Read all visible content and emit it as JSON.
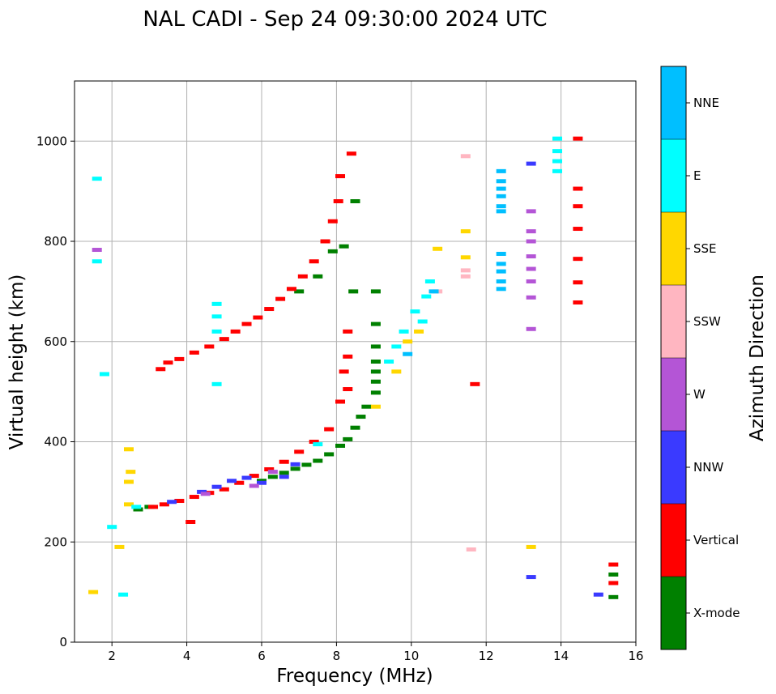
{
  "chart_data": {
    "type": "scatter",
    "title": "NAL CADI - Sep 24 09:30:00 2024 UTC",
    "xlabel": "Frequency (MHz)",
    "ylabel": "Virtual height (km)",
    "xlim": [
      1,
      16
    ],
    "ylim": [
      0,
      1120
    ],
    "xticks": [
      2,
      4,
      6,
      8,
      10,
      12,
      14,
      16
    ],
    "yticks": [
      0,
      200,
      400,
      600,
      800,
      1000
    ],
    "grid": true,
    "colorbar": {
      "label": "Azimuth Direction",
      "categories": [
        {
          "name": "X-mode",
          "color": "#008000"
        },
        {
          "name": "Vertical",
          "color": "#ff0000"
        },
        {
          "name": "NNW",
          "color": "#3a3aff"
        },
        {
          "name": "W",
          "color": "#b455d6"
        },
        {
          "name": "SSW",
          "color": "#ffb6c1"
        },
        {
          "name": "SSE",
          "color": "#ffd700"
        },
        {
          "name": "E",
          "color": "#00ffff"
        },
        {
          "name": "NNE",
          "color": "#00bfff"
        }
      ]
    },
    "series": [
      {
        "name": "X-mode",
        "points": [
          [
            6.0,
            322
          ],
          [
            6.3,
            330
          ],
          [
            6.6,
            338
          ],
          [
            6.9,
            346
          ],
          [
            7.2,
            354
          ],
          [
            7.5,
            362
          ],
          [
            7.8,
            375
          ],
          [
            8.1,
            392
          ],
          [
            8.3,
            405
          ],
          [
            8.5,
            428
          ],
          [
            8.65,
            450
          ],
          [
            8.8,
            470
          ],
          [
            8.5,
            880
          ],
          [
            8.45,
            700
          ],
          [
            8.2,
            790
          ],
          [
            9.05,
            700
          ],
          [
            9.05,
            635
          ],
          [
            9.05,
            590
          ],
          [
            9.05,
            560
          ],
          [
            9.05,
            540
          ],
          [
            9.05,
            520
          ],
          [
            9.05,
            498
          ],
          [
            7.9,
            780
          ],
          [
            7.5,
            730
          ],
          [
            7.0,
            700
          ],
          [
            2.7,
            265
          ],
          [
            3.0,
            270
          ],
          [
            15.4,
            135
          ],
          [
            15.4,
            90
          ]
        ]
      },
      {
        "name": "Vertical",
        "points": [
          [
            3.3,
            545
          ],
          [
            3.5,
            558
          ],
          [
            3.8,
            565
          ],
          [
            4.2,
            578
          ],
          [
            4.6,
            590
          ],
          [
            5.0,
            605
          ],
          [
            5.3,
            620
          ],
          [
            5.6,
            635
          ],
          [
            5.9,
            648
          ],
          [
            6.2,
            665
          ],
          [
            6.5,
            685
          ],
          [
            6.8,
            705
          ],
          [
            7.1,
            730
          ],
          [
            7.4,
            760
          ],
          [
            7.7,
            800
          ],
          [
            7.9,
            840
          ],
          [
            8.05,
            880
          ],
          [
            8.1,
            930
          ],
          [
            8.4,
            975
          ],
          [
            8.3,
            620
          ],
          [
            8.3,
            570
          ],
          [
            8.2,
            540
          ],
          [
            8.3,
            505
          ],
          [
            8.1,
            480
          ],
          [
            7.8,
            425
          ],
          [
            7.4,
            400
          ],
          [
            7.0,
            380
          ],
          [
            6.6,
            360
          ],
          [
            6.2,
            345
          ],
          [
            5.8,
            332
          ],
          [
            5.4,
            318
          ],
          [
            5.0,
            305
          ],
          [
            4.6,
            298
          ],
          [
            4.2,
            290
          ],
          [
            3.8,
            282
          ],
          [
            3.4,
            275
          ],
          [
            3.1,
            270
          ],
          [
            4.1,
            240
          ],
          [
            14.45,
            1005
          ],
          [
            14.45,
            905
          ],
          [
            14.45,
            870
          ],
          [
            14.45,
            825
          ],
          [
            14.45,
            765
          ],
          [
            14.45,
            718
          ],
          [
            14.45,
            678
          ],
          [
            15.4,
            155
          ],
          [
            15.4,
            118
          ],
          [
            11.7,
            515
          ]
        ]
      },
      {
        "name": "NNW",
        "points": [
          [
            5.2,
            322
          ],
          [
            5.6,
            328
          ],
          [
            6.0,
            318
          ],
          [
            6.6,
            330
          ],
          [
            4.4,
            300
          ],
          [
            4.8,
            310
          ],
          [
            13.2,
            955
          ],
          [
            13.2,
            130
          ],
          [
            15.0,
            95
          ],
          [
            3.6,
            280
          ],
          [
            6.9,
            355
          ]
        ]
      },
      {
        "name": "W",
        "points": [
          [
            13.2,
            860
          ],
          [
            13.2,
            820
          ],
          [
            13.2,
            800
          ],
          [
            13.2,
            770
          ],
          [
            13.2,
            745
          ],
          [
            13.2,
            720
          ],
          [
            13.2,
            688
          ],
          [
            13.2,
            625
          ],
          [
            5.8,
            312
          ],
          [
            6.3,
            340
          ],
          [
            4.5,
            296
          ],
          [
            1.6,
            783
          ]
        ]
      },
      {
        "name": "SSW",
        "points": [
          [
            11.45,
            970
          ],
          [
            11.6,
            185
          ],
          [
            11.45,
            742
          ],
          [
            11.45,
            730
          ],
          [
            10.7,
            700
          ]
        ]
      },
      {
        "name": "SSE",
        "points": [
          [
            2.45,
            385
          ],
          [
            2.5,
            340
          ],
          [
            2.45,
            320
          ],
          [
            2.45,
            275
          ],
          [
            2.2,
            190
          ],
          [
            1.5,
            100
          ],
          [
            9.6,
            540
          ],
          [
            9.9,
            600
          ],
          [
            10.2,
            620
          ],
          [
            10.7,
            785
          ],
          [
            11.45,
            820
          ],
          [
            11.45,
            768
          ],
          [
            9.05,
            470
          ],
          [
            13.2,
            190
          ]
        ]
      },
      {
        "name": "E",
        "points": [
          [
            4.8,
            675
          ],
          [
            4.8,
            650
          ],
          [
            4.8,
            620
          ],
          [
            4.8,
            515
          ],
          [
            9.4,
            560
          ],
          [
            9.6,
            590
          ],
          [
            9.8,
            620
          ],
          [
            10.1,
            660
          ],
          [
            10.4,
            690
          ],
          [
            10.5,
            720
          ],
          [
            10.3,
            640
          ],
          [
            1.6,
            925
          ],
          [
            1.6,
            760
          ],
          [
            1.8,
            535
          ],
          [
            2.0,
            230
          ],
          [
            2.3,
            95
          ],
          [
            13.9,
            1005
          ],
          [
            13.9,
            980
          ],
          [
            13.9,
            960
          ],
          [
            13.9,
            940
          ],
          [
            7.5,
            395
          ],
          [
            2.65,
            270
          ]
        ]
      },
      {
        "name": "NNE",
        "points": [
          [
            12.4,
            940
          ],
          [
            12.4,
            920
          ],
          [
            12.4,
            905
          ],
          [
            12.4,
            890
          ],
          [
            12.4,
            870
          ],
          [
            12.4,
            860
          ],
          [
            12.4,
            775
          ],
          [
            12.4,
            755
          ],
          [
            12.4,
            740
          ],
          [
            12.4,
            720
          ],
          [
            12.4,
            705
          ],
          [
            9.9,
            575
          ],
          [
            10.6,
            700
          ]
        ]
      }
    ]
  }
}
